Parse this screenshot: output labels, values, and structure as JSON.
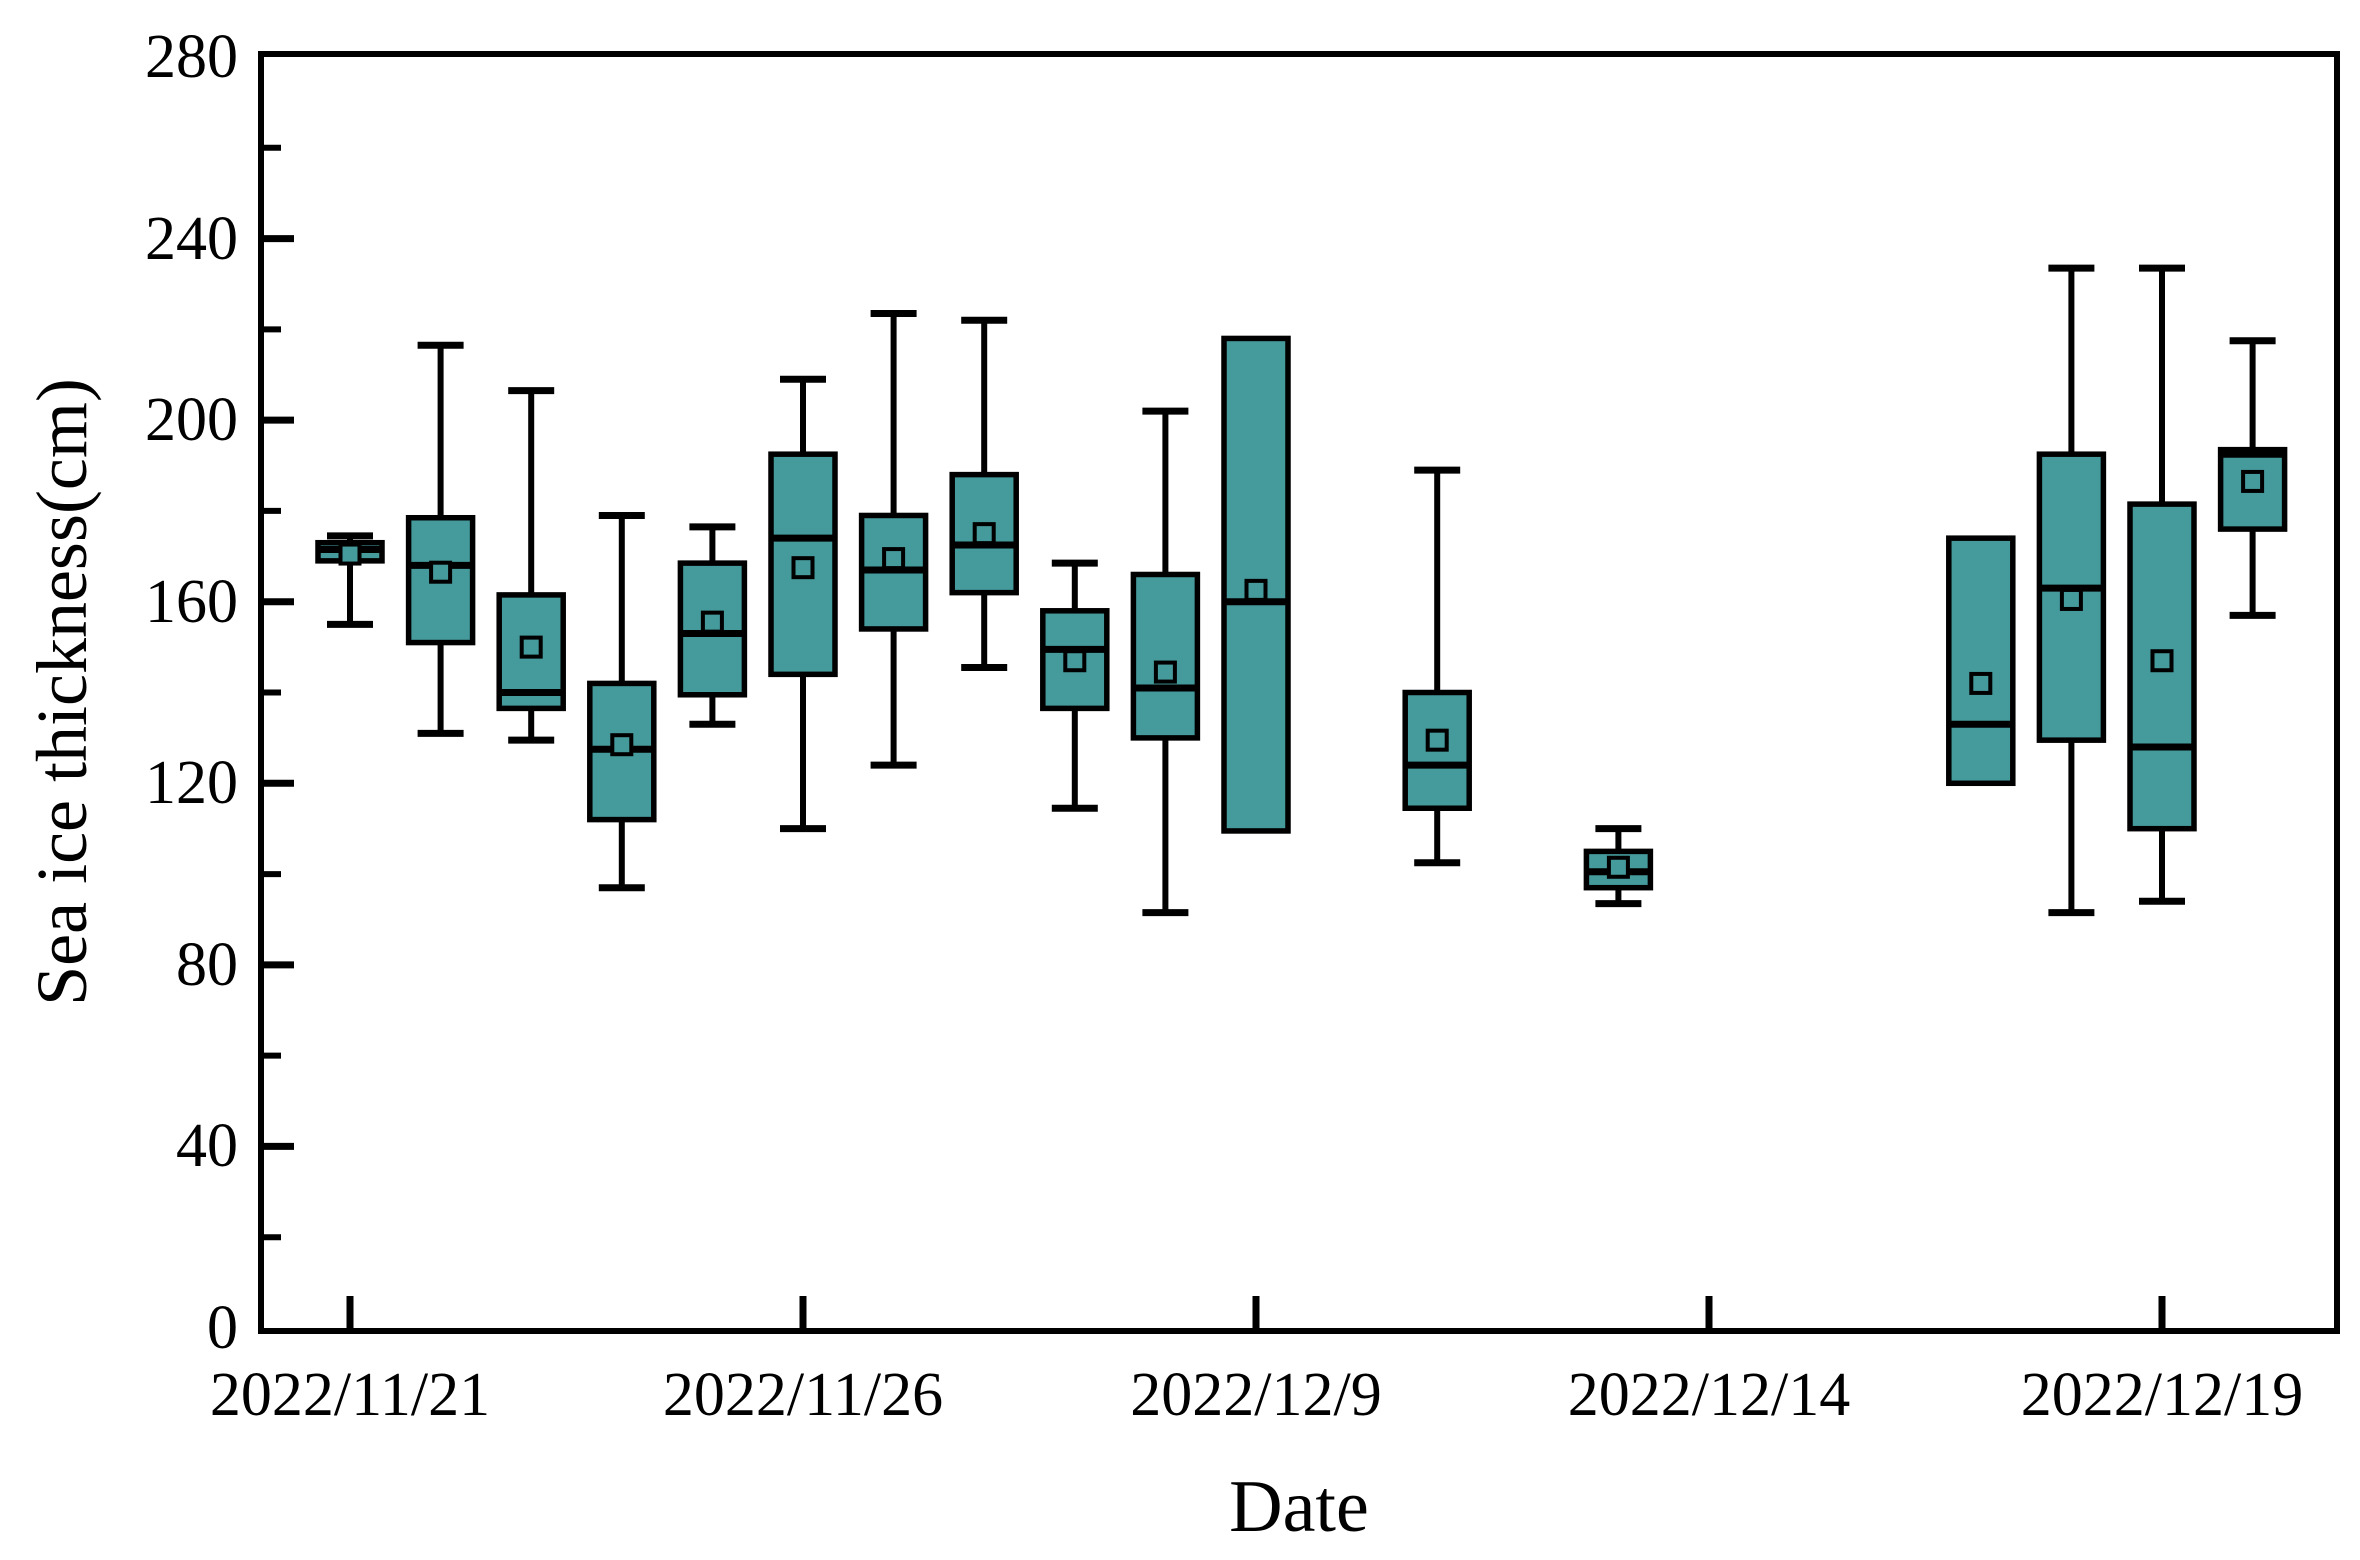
{
  "chart_data": {
    "type": "box",
    "title": "",
    "xlabel": "Date",
    "ylabel": "Sea ice thickness(cm)",
    "ylim": [
      0,
      280
    ],
    "y_major_ticks": [
      0,
      40,
      80,
      120,
      160,
      200,
      240,
      280
    ],
    "y_tick_labels": [
      "0",
      "40",
      "80",
      "120",
      "160",
      "200",
      "240",
      "280"
    ],
    "y_minor_ticks": [
      20,
      60,
      100,
      140,
      180,
      220,
      260
    ],
    "x_slot_count": 22,
    "x_ticks": [
      {
        "slot": 0,
        "label": "2022/11/21"
      },
      {
        "slot": 5,
        "label": "2022/11/26"
      },
      {
        "slot": 10,
        "label": "2022/12/9"
      },
      {
        "slot": 15,
        "label": "2022/12/14"
      },
      {
        "slot": 20,
        "label": "2022/12/19"
      }
    ],
    "grid": false,
    "legend_position": "none",
    "mean_marker": "open-square",
    "colors": {
      "box_fill": "#459a9c",
      "stroke": "#000000",
      "background": "#ffffff"
    },
    "boxes": [
      {
        "slot": 0,
        "whisker_low": 155,
        "q1": 169,
        "median": 171.5,
        "mean": 170.5,
        "q3": 173,
        "whisker_high": 174.5
      },
      {
        "slot": 1,
        "whisker_low": 131,
        "q1": 151,
        "median": 168,
        "mean": 166.5,
        "q3": 178.5,
        "whisker_high": 216.5
      },
      {
        "slot": 2,
        "whisker_low": 129.5,
        "q1": 136.5,
        "median": 140,
        "mean": 150,
        "q3": 161.5,
        "whisker_high": 206.5
      },
      {
        "slot": 3,
        "whisker_low": 97,
        "q1": 112,
        "median": 127.5,
        "mean": 128.5,
        "q3": 142,
        "whisker_high": 179
      },
      {
        "slot": 4,
        "whisker_low": 133,
        "q1": 139.5,
        "median": 153,
        "mean": 155.5,
        "q3": 168.5,
        "whisker_high": 176.5
      },
      {
        "slot": 5,
        "whisker_low": 110,
        "q1": 144,
        "median": 174,
        "mean": 167.5,
        "q3": 192.5,
        "whisker_high": 209
      },
      {
        "slot": 6,
        "whisker_low": 124,
        "q1": 154,
        "median": 167,
        "mean": 169.5,
        "q3": 179,
        "whisker_high": 223.5
      },
      {
        "slot": 7,
        "whisker_low": 145.5,
        "q1": 162,
        "median": 172.5,
        "mean": 175,
        "q3": 188,
        "whisker_high": 222
      },
      {
        "slot": 8,
        "whisker_low": 114.5,
        "q1": 136.5,
        "median": 149.5,
        "mean": 147,
        "q3": 158,
        "whisker_high": 168.5
      },
      {
        "slot": 9,
        "whisker_low": 91.5,
        "q1": 130,
        "median": 141,
        "mean": 144.5,
        "q3": 166,
        "whisker_high": 202
      },
      {
        "slot": 10,
        "whisker_low": 109.5,
        "q1": 109.5,
        "median": 160,
        "mean": 162.5,
        "q3": 218,
        "whisker_high": 218
      },
      {
        "slot": 12,
        "whisker_low": 102.5,
        "q1": 114.5,
        "median": 124,
        "mean": 129.5,
        "q3": 140,
        "whisker_high": 189
      },
      {
        "slot": 14,
        "whisker_low": 93.5,
        "q1": 97,
        "median": 100.5,
        "mean": 101.5,
        "q3": 105,
        "whisker_high": 110
      },
      {
        "slot": 18,
        "whisker_low": 120,
        "q1": 120,
        "median": 133,
        "mean": 142,
        "q3": 174,
        "whisker_high": 174
      },
      {
        "slot": 19,
        "whisker_low": 91.5,
        "q1": 129.5,
        "median": 163,
        "mean": 160.5,
        "q3": 192.5,
        "whisker_high": 233.5
      },
      {
        "slot": 20,
        "whisker_low": 94,
        "q1": 110,
        "median": 128,
        "mean": 147,
        "q3": 181.5,
        "whisker_high": 233.5
      },
      {
        "slot": 21,
        "whisker_low": 157,
        "q1": 176,
        "median": 192.5,
        "mean": 186.5,
        "q3": 193.5,
        "whisker_high": 217.5
      }
    ]
  }
}
